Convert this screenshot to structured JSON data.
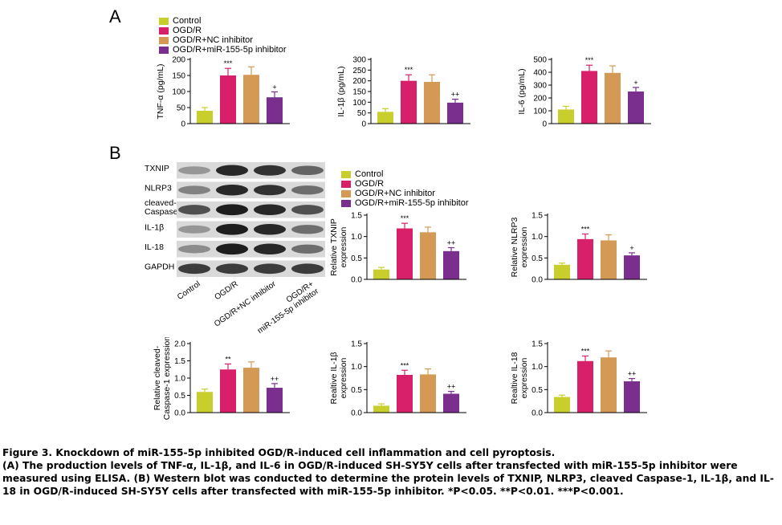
{
  "panels": {
    "a": "A",
    "b": "B"
  },
  "legend": {
    "items": [
      "Control",
      "OGD/R",
      "OGD/R+NC inhibitor",
      "OGD/R+miR-155-5p inhibitor"
    ],
    "colors": [
      "#c8cf2c",
      "#d81f6a",
      "#d49a55",
      "#7a2f8f"
    ]
  },
  "blot": {
    "rows": [
      "TXNIP",
      "NLRP3",
      "cleaved-\nCaspase-1",
      "IL-1β",
      "IL-18",
      "GAPDH"
    ],
    "lanes": [
      "Control",
      "OGD/R",
      "OGD/R+NC inhibitor",
      "OGD/R+\nmiR-155-5p inhibitor"
    ]
  },
  "chart_data": [
    {
      "type": "bar",
      "ylabel": "TNF-α (pg/mL)",
      "ylim": [
        0,
        200
      ],
      "ticks": [
        0,
        50,
        100,
        150,
        200
      ],
      "categories": [
        "Control",
        "OGD/R",
        "OGD/R+NC inhibitor",
        "OGD/R+miR-155-5p inhibitor"
      ],
      "values": [
        40,
        150,
        152,
        82
      ],
      "errors": [
        10,
        22,
        25,
        17
      ],
      "annotations": [
        "",
        "***",
        "",
        "+"
      ]
    },
    {
      "type": "bar",
      "ylabel": "IL-1β (pg/mL)",
      "ylim": [
        0,
        300
      ],
      "ticks": [
        0,
        50,
        100,
        150,
        200,
        250,
        300
      ],
      "categories": [
        "Control",
        "OGD/R",
        "OGD/R+NC inhibitor",
        "OGD/R+miR-155-5p inhibitor"
      ],
      "values": [
        55,
        200,
        195,
        98
      ],
      "errors": [
        15,
        28,
        33,
        16
      ],
      "annotations": [
        "",
        "***",
        "",
        "++"
      ]
    },
    {
      "type": "bar",
      "ylabel": "IL-6 (pg/mL)",
      "ylim": [
        0,
        500
      ],
      "ticks": [
        0,
        100,
        200,
        300,
        400,
        500
      ],
      "categories": [
        "Control",
        "OGD/R",
        "OGD/R+NC inhibitor",
        "OGD/R+miR-155-5p inhibitor"
      ],
      "values": [
        110,
        410,
        395,
        250
      ],
      "errors": [
        25,
        45,
        55,
        32
      ],
      "annotations": [
        "",
        "***",
        "",
        "+"
      ]
    },
    {
      "type": "bar",
      "ylabel": "Relative TXNIP\nexpression",
      "ylim": [
        0,
        1.5
      ],
      "ticks": [
        "0.0",
        "0.5",
        "1.0",
        "1.5"
      ],
      "categories": [
        "Control",
        "OGD/R",
        "OGD/R+NC inhibitor",
        "OGD/R+miR-155-5p inhibitor"
      ],
      "values": [
        0.23,
        1.19,
        1.1,
        0.66
      ],
      "errors": [
        0.05,
        0.12,
        0.12,
        0.08
      ],
      "annotations": [
        "",
        "***",
        "",
        "++"
      ]
    },
    {
      "type": "bar",
      "ylabel": "Relative NLRP3\nexpression",
      "ylim": [
        0,
        1.5
      ],
      "ticks": [
        "0.0",
        "0.5",
        "1.0",
        "1.5"
      ],
      "categories": [
        "Control",
        "OGD/R",
        "OGD/R+NC inhibitor",
        "OGD/R+miR-155-5p inhibitor"
      ],
      "values": [
        0.34,
        0.94,
        0.91,
        0.56
      ],
      "errors": [
        0.04,
        0.12,
        0.13,
        0.06
      ],
      "annotations": [
        "",
        "***",
        "",
        "+"
      ]
    },
    {
      "type": "bar",
      "ylabel": "Relative cleaved-\nCaspase-1 expression",
      "ylim": [
        0,
        2.0
      ],
      "ticks": [
        "0.0",
        "0.5",
        "1.0",
        "1.5",
        "2.0"
      ],
      "categories": [
        "Control",
        "OGD/R",
        "OGD/R+NC inhibitor",
        "OGD/R+miR-155-5p inhibitor"
      ],
      "values": [
        0.6,
        1.25,
        1.3,
        0.72
      ],
      "errors": [
        0.08,
        0.16,
        0.17,
        0.12
      ],
      "annotations": [
        "",
        "**",
        "",
        "++"
      ]
    },
    {
      "type": "bar",
      "ylabel": "Realtive IL-1β\nexpression",
      "ylim": [
        0,
        1.5
      ],
      "ticks": [
        "0.0",
        "0.5",
        "1.0",
        "1.5"
      ],
      "categories": [
        "Control",
        "OGD/R",
        "OGD/R+NC inhibitor",
        "OGD/R+miR-155-5p inhibitor"
      ],
      "values": [
        0.15,
        0.82,
        0.83,
        0.41
      ],
      "errors": [
        0.04,
        0.1,
        0.12,
        0.05
      ],
      "annotations": [
        "",
        "***",
        "",
        "++"
      ]
    },
    {
      "type": "bar",
      "ylabel": "Realtive IL-18\nexpression",
      "ylim": [
        0,
        1.5
      ],
      "ticks": [
        "0.0",
        "0.5",
        "1.0",
        "1.5"
      ],
      "categories": [
        "Control",
        "OGD/R",
        "OGD/R+NC inhibitor",
        "OGD/R+miR-155-5p inhibitor"
      ],
      "values": [
        0.34,
        1.12,
        1.2,
        0.68
      ],
      "errors": [
        0.04,
        0.11,
        0.14,
        0.06
      ],
      "annotations": [
        "",
        "***",
        "",
        "++"
      ]
    }
  ],
  "caption": {
    "title": "Figure 3. Knockdown of miR-155-5p inhibited OGD/R-induced cell inflammation and cell pyroptosis.",
    "body": "(A) The production levels of TNF-α, IL-1β, and IL-6 in OGD/R-induced SH-SY5Y cells after transfected with miR-155-5p inhibitor were measured using ELISA. (B) Western blot was conducted to determine the protein levels of TXNIP, NLRP3, cleaved Caspase-1, IL-1β, and IL-18 in OGD/R-induced SH-SY5Y cells after transfected with miR-155-5p inhibitor. *P<0.05. **P<0.01. ***P<0.001."
  }
}
